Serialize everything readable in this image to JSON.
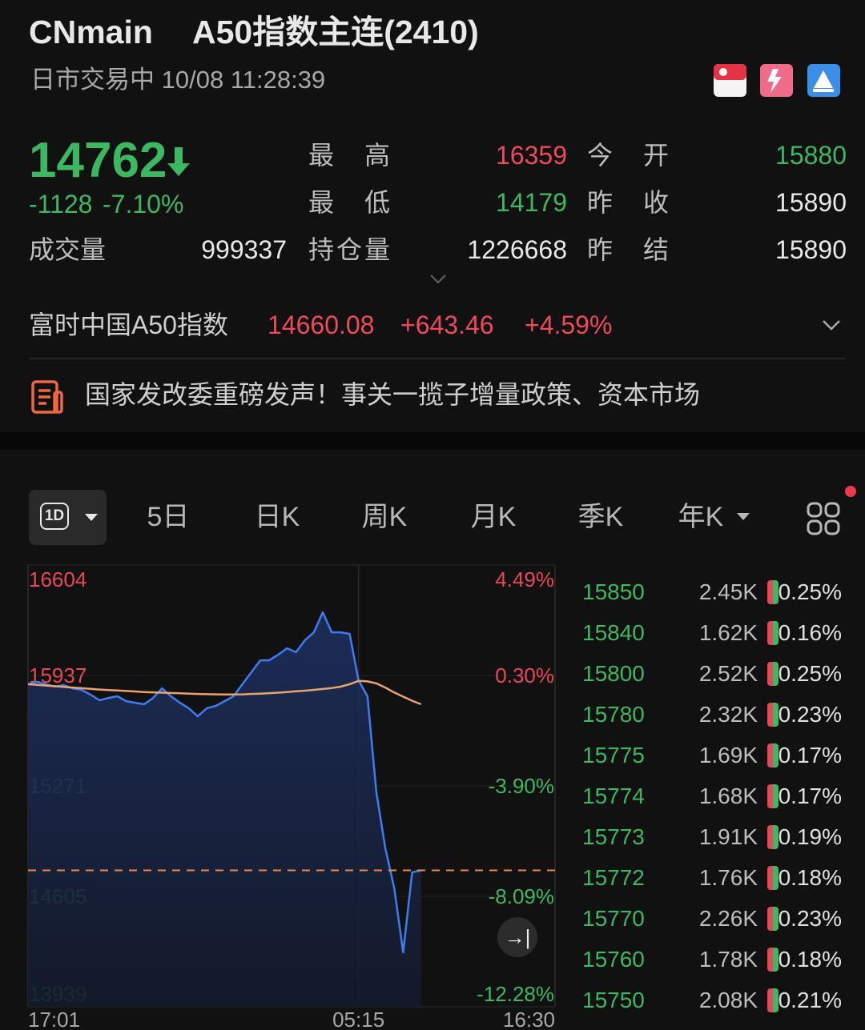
{
  "header": {
    "title": "CNmain",
    "name": "A50指数主连(2410)",
    "status": "日市交易中 10/08 11:28:39"
  },
  "quote": {
    "price": "14762",
    "change": "-1128",
    "change_pct": "-7.10%",
    "volume": {
      "label": "成交量",
      "value": "999337"
    },
    "stats": [
      {
        "label": "最高",
        "value": "16359"
      },
      {
        "label": "今开",
        "value": "15880"
      },
      {
        "label": "最低",
        "value": "14179"
      },
      {
        "label": "昨收",
        "value": "15890"
      },
      {
        "label": "持仓量",
        "value": "1226668"
      },
      {
        "label": "昨结",
        "value": "15890"
      }
    ]
  },
  "index": {
    "name": "富时中国A50指数",
    "value": "14660.08",
    "change": "+643.46",
    "change_pct": "+4.59%"
  },
  "news": "国家发改委重磅发声！事关一揽子增量政策、资本市场",
  "tabs": {
    "active": "1D",
    "items": [
      "5日",
      "日K",
      "周K",
      "月K",
      "季K",
      "年K"
    ]
  },
  "chart": {
    "type": "line",
    "last_price": 14762,
    "xlim": [
      0,
      59
    ],
    "xticks": [
      {
        "value": 0,
        "label": "17:01"
      },
      {
        "value": 37,
        "label": "05:15"
      },
      {
        "value": 59,
        "label": "16:30"
      }
    ],
    "ylim": [
      13939,
      16604
    ],
    "yticks": [
      16604,
      15937,
      15271,
      14605,
      13939
    ],
    "y2lim": [
      -12.28,
      4.49
    ],
    "y2ticks": [
      {
        "value": 4.49,
        "label": "4.49%"
      },
      {
        "value": 0.3,
        "label": "0.30%"
      },
      {
        "value": -3.9,
        "label": "-3.90%"
      },
      {
        "value": -8.09,
        "label": "-8.09%"
      },
      {
        "value": -12.28,
        "label": "-12.28%"
      }
    ],
    "series": [
      {
        "color": "#3d7df2",
        "values": [
          15885,
          15899,
          15885,
          15870,
          15880,
          15860,
          15851,
          15822,
          15788,
          15802,
          15812,
          15783,
          15773,
          15764,
          15802,
          15860,
          15812,
          15773,
          15740,
          15691,
          15740,
          15754,
          15783,
          15812,
          15885,
          15957,
          16029,
          16029,
          16063,
          16102,
          16078,
          16150,
          16198,
          16319,
          16198,
          16198,
          16189,
          15909,
          15812,
          15233,
          14895,
          14653,
          14267,
          14750,
          14762,
          null,
          null,
          null,
          null,
          null,
          null,
          null,
          null,
          null,
          null,
          null,
          null,
          null,
          null,
          null
        ]
      },
      {
        "color": "#e8a46c",
        "values": [
          15885,
          15881,
          15877,
          15873,
          15869,
          15865,
          15861,
          15857,
          15853,
          15850,
          15847,
          15844,
          15841,
          15838,
          15836,
          15834,
          15832,
          15830,
          15828,
          15826,
          15825,
          15824,
          15823,
          15823,
          15824,
          15826,
          15828,
          15831,
          15834,
          15838,
          15842,
          15846,
          15851,
          15856,
          15862,
          15870,
          15885,
          15905,
          15902,
          15890,
          15865,
          15835,
          15810,
          15785,
          15764,
          null,
          null,
          null,
          null,
          null,
          null,
          null,
          null,
          null,
          null,
          null,
          null,
          null,
          null,
          null
        ]
      }
    ]
  },
  "order_book": {
    "rows": [
      [
        "15850",
        "2.45K",
        "0.25%"
      ],
      [
        "15840",
        "1.62K",
        "0.16%"
      ],
      [
        "15800",
        "2.52K",
        "0.25%"
      ],
      [
        "15780",
        "2.32K",
        "0.23%"
      ],
      [
        "15775",
        "1.69K",
        "0.17%"
      ],
      [
        "15774",
        "1.68K",
        "0.17%"
      ],
      [
        "15773",
        "1.91K",
        "0.19%"
      ],
      [
        "15772",
        "1.76K",
        "0.18%"
      ],
      [
        "15770",
        "2.26K",
        "0.23%"
      ],
      [
        "15760",
        "1.78K",
        "0.18%"
      ],
      [
        "15750",
        "2.08K",
        "0.21%"
      ]
    ]
  }
}
